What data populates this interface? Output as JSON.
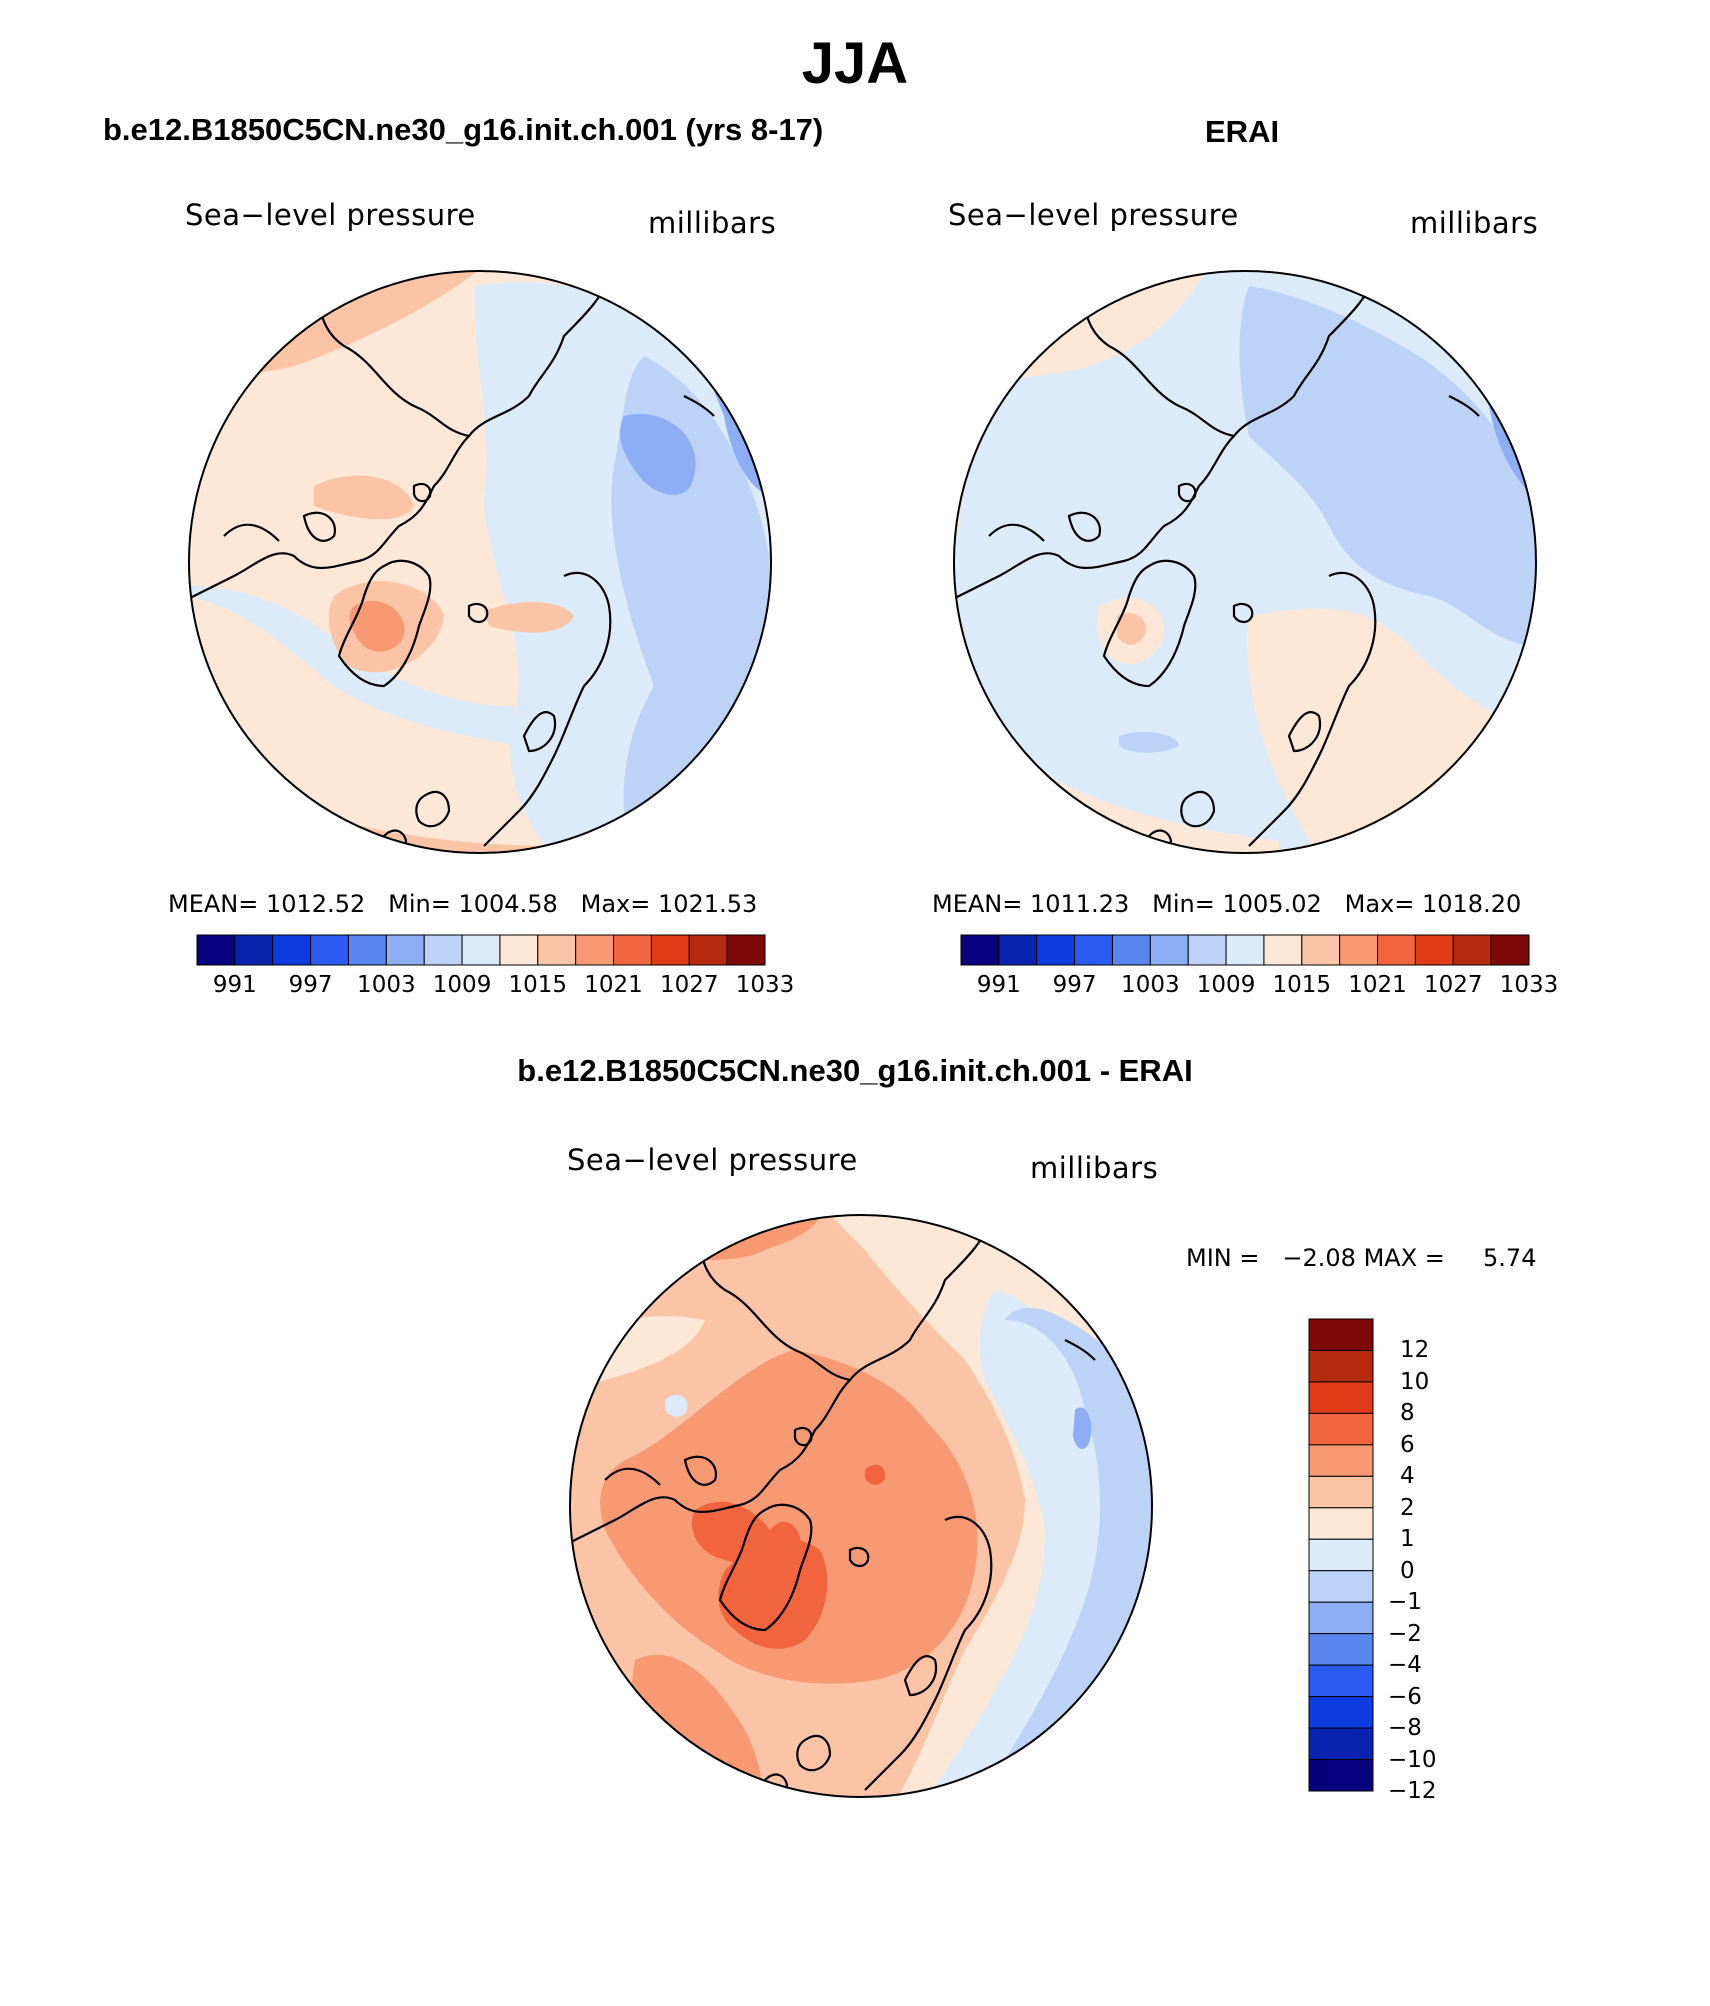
{
  "title": "JJA",
  "units_label": "millibars",
  "variable_label": "Sea−level pressure",
  "panels": [
    {
      "id": "model",
      "title": "b.e12.B1850C5CN.ne30_g16.init.ch.001 (yrs 8-17)",
      "variable_label": "Sea−level pressure",
      "units_label": "millibars",
      "stats": {
        "mean_label": "MEAN=",
        "mean": "1012.52",
        "min_label": "Min=",
        "min": "1004.58",
        "max_label": "Max=",
        "max": "1021.53"
      },
      "colorbar_ticks": [
        "991",
        "997",
        "1003",
        "1009",
        "1015",
        "1021",
        "1027",
        "1033"
      ]
    },
    {
      "id": "obs",
      "title": "ERAI",
      "variable_label": "Sea−level pressure",
      "units_label": "millibars",
      "stats": {
        "mean_label": "MEAN=",
        "mean": "1011.23",
        "min_label": "Min=",
        "min": "1005.02",
        "max_label": "Max=",
        "max": "1018.20"
      },
      "colorbar_ticks": [
        "991",
        "997",
        "1003",
        "1009",
        "1015",
        "1021",
        "1027",
        "1033"
      ]
    }
  ],
  "difference": {
    "title": "b.e12.B1850C5CN.ne30_g16.init.ch.001 - ERAI",
    "variable_label": "Sea−level pressure",
    "units_label": "millibars",
    "min_label": "MIN =",
    "min": "−2.08",
    "max_label": "MAX =",
    "max": "5.74",
    "colorbar_ticks": [
      "12",
      "10",
      "8",
      "6",
      "4",
      "2",
      "1",
      "0",
      "−1",
      "−2",
      "−4",
      "−6",
      "−8",
      "−10",
      "−12"
    ]
  },
  "palettes": {
    "full_field": [
      "#08007d",
      "#0a22b0",
      "#0d3de0",
      "#2b5bf2",
      "#5a86f0",
      "#8dadf5",
      "#bcd2f7",
      "#dcebfa",
      "#fde7d6",
      "#fbc4a6",
      "#f79a73",
      "#f2643e",
      "#e03a17",
      "#b52a0d",
      "#7d0a07"
    ],
    "difference": [
      "#7d0a07",
      "#b52a0d",
      "#e03a17",
      "#f2643e",
      "#f79a73",
      "#fbc4a6",
      "#fde7d6",
      "#dcebfa",
      "#bcd2f7",
      "#8dadf5",
      "#5a86f0",
      "#2b5bf2",
      "#0d3de0",
      "#0a22b0",
      "#08007d"
    ]
  },
  "chart_data": [
    {
      "type": "heatmap",
      "projection": "north polar stereographic",
      "title": "b.e12.B1850C5CN.ne30_g16.init.ch.001 (yrs 8-17)",
      "variable": "Sea-level pressure",
      "units": "millibars",
      "mean": 1012.52,
      "min": 1004.58,
      "max": 1021.53,
      "contour_levels": [
        991,
        994,
        997,
        1000,
        1003,
        1006,
        1009,
        1012,
        1015,
        1018,
        1021,
        1024,
        1027,
        1030,
        1033
      ]
    },
    {
      "type": "heatmap",
      "projection": "north polar stereographic",
      "title": "ERAI",
      "variable": "Sea-level pressure",
      "units": "millibars",
      "mean": 1011.23,
      "min": 1005.02,
      "max": 1018.2,
      "contour_levels": [
        991,
        994,
        997,
        1000,
        1003,
        1006,
        1009,
        1012,
        1015,
        1018,
        1021,
        1024,
        1027,
        1030,
        1033
      ]
    },
    {
      "type": "heatmap",
      "projection": "north polar stereographic",
      "title": "b.e12.B1850C5CN.ne30_g16.init.ch.001 - ERAI",
      "variable": "Sea-level pressure",
      "units": "millibars",
      "min": -2.08,
      "max": 5.74,
      "contour_levels": [
        -12,
        -10,
        -8,
        -6,
        -4,
        -2,
        -1,
        0,
        1,
        2,
        4,
        6,
        8,
        10,
        12
      ]
    }
  ]
}
